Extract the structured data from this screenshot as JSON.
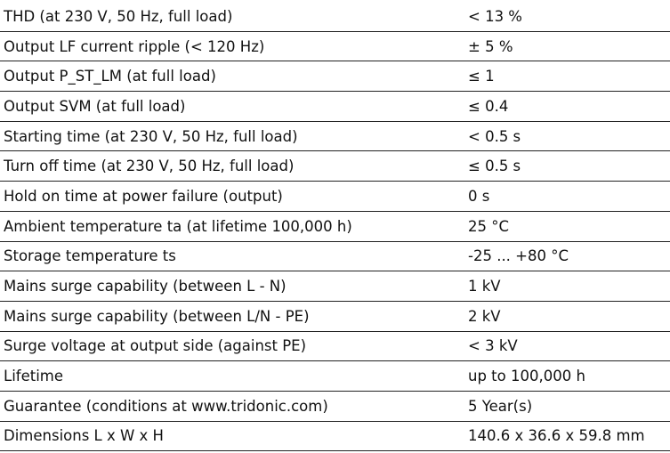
{
  "table": {
    "rows": [
      [
        "THD (at 230 V, 50 Hz, full load)",
        "< 13 %"
      ],
      [
        "Output LF current ripple (< 120 Hz)",
        "± 5 %"
      ],
      [
        "Output P_ST_LM (at full load)",
        "≤ 1"
      ],
      [
        "Output SVM (at full load)",
        "≤ 0.4"
      ],
      [
        "Starting time (at 230 V, 50 Hz, full load)",
        "< 0.5 s"
      ],
      [
        "Turn off time (at 230 V, 50 Hz, full load)",
        "≤ 0.5 s"
      ],
      [
        "Hold on time at power failure (output)",
        "0 s"
      ],
      [
        "Ambient temperature ta (at lifetime 100,000 h)",
        "25 °C"
      ],
      [
        "Storage temperature ts",
        "-25 ... +80 °C"
      ],
      [
        "Mains surge capability (between L - N)",
        "1 kV"
      ],
      [
        "Mains surge capability (between L/N - PE)",
        "2 kV"
      ],
      [
        "Surge voltage at output side (against PE)",
        "< 3 kV"
      ],
      [
        "Lifetime",
        "up to 100,000 h"
      ],
      [
        "Guarantee (conditions at www.tridonic.com)",
        "5 Year(s)"
      ],
      [
        "Dimensions L x W x H",
        "140.6 x 36.6 x 59.8 mm"
      ]
    ]
  }
}
